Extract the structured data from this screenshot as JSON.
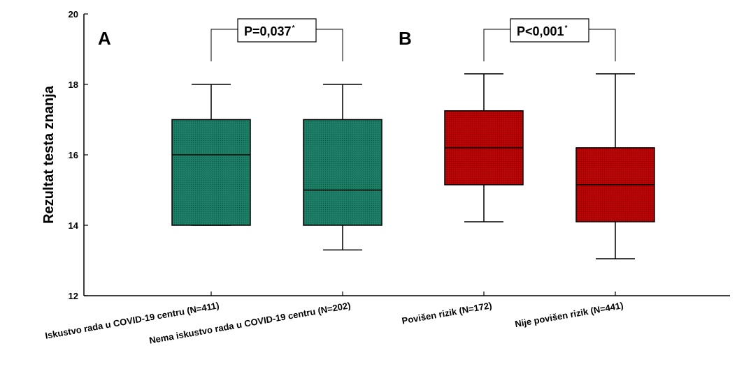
{
  "colors": {
    "green_fill": "#1a7a62",
    "red_fill": "#b30000",
    "stroke": "#000000"
  },
  "chart_data": {
    "type": "box",
    "ylabel": "Rezultat testa znanja",
    "ylim": [
      12,
      20
    ],
    "yticks": [
      "12",
      "14",
      "16",
      "18",
      "20"
    ],
    "grid": false,
    "legend": "none",
    "boxes": [
      {
        "category": "Iskustvo rada u COVID-19 centru (N=411)",
        "whisker_low": 14,
        "q1": 14,
        "median": 16,
        "q3": 17,
        "whisker_high": 18,
        "color": "green"
      },
      {
        "category": "Nema iskustvo rada u COVID-19 centru (N=202)",
        "whisker_low": 13.3,
        "q1": 14,
        "median": 15,
        "q3": 17,
        "whisker_high": 18,
        "color": "green"
      },
      {
        "category": "Povišen rizik (N=172)",
        "whisker_low": 14.1,
        "q1": 15.15,
        "median": 16.2,
        "q3": 17.25,
        "whisker_high": 18.3,
        "color": "red"
      },
      {
        "category": "Nije povišen rizik (N=441)",
        "whisker_low": 13.05,
        "q1": 14.1,
        "median": 15.15,
        "q3": 16.2,
        "whisker_high": 18.3,
        "color": "red"
      }
    ],
    "panels": [
      {
        "label": "A",
        "p_value": "P=0,037",
        "p_mark": "*",
        "boxes": [
          0,
          1
        ]
      },
      {
        "label": "B",
        "p_value": "P<0,001",
        "p_mark": "*",
        "boxes": [
          2,
          3
        ]
      }
    ]
  }
}
